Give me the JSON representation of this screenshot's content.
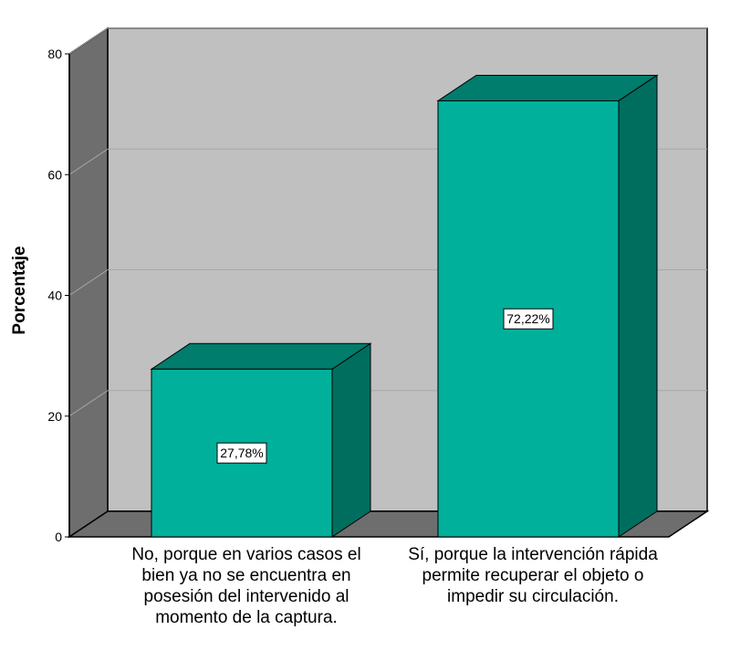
{
  "chart_data": {
    "type": "bar",
    "ylabel": "Porcentaje",
    "ylim": [
      0,
      80
    ],
    "yticks": [
      0,
      20,
      40,
      60,
      80
    ],
    "categories": [
      "No, porque en varios casos el bien ya no se encuentra en posesión del intervenido al momento de la captura.",
      "Sí, porque la intervención rápida permite recuperar el objeto o impedir su circulación."
    ],
    "category_lines": [
      [
        "No, porque en varios casos el",
        "bien ya no se encuentra en",
        "posesión del intervenido al",
        "momento de la captura."
      ],
      [
        "Sí, porque la intervención rápida",
        "permite recuperar el objeto o",
        "impedir su circulación."
      ]
    ],
    "values": [
      27.78,
      72.22
    ],
    "data_labels": [
      "27,78%",
      "72,22%"
    ],
    "grid": true,
    "style": "3d",
    "colors": {
      "bar_front": "#00b09b",
      "bar_side": "#006e5f",
      "bar_top": "#007d6c",
      "plot_bg": "#c0c0c0",
      "left_wall": "#6e6e6e",
      "floor": "#6e6e6e"
    }
  }
}
